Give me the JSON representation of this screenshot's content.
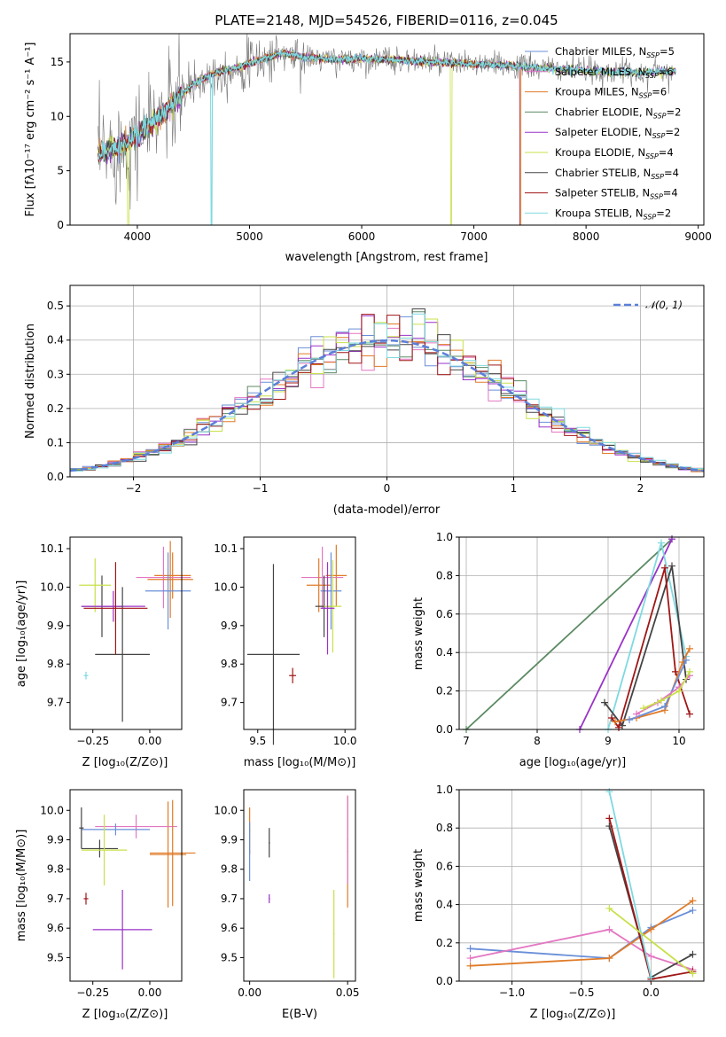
{
  "colors": {
    "chabrier_miles": "#6a8fd8",
    "salpeter_miles": "#e377c2",
    "kroupa_miles": "#e07b28",
    "chabrier_elodie": "#5b8a63",
    "salpeter_elodie": "#9a32c8",
    "kroupa_elodie": "#c8e04a",
    "chabrier_stelib": "#444444",
    "salpeter_stelib": "#a01616",
    "kroupa_stelib": "#7fd9e0",
    "normal": "#5b7fd9"
  },
  "chart_data": [
    {
      "type": "line",
      "id": "spectrum",
      "title": "PLATE=2148, MJD=54526, FIBERID=0116, z=0.045",
      "xlabel": "wavelength [Angstrom, rest frame]",
      "ylabel": "Flux [fλ10⁻¹⁷ erg cm⁻² s⁻¹ A⁻¹]",
      "xlim": [
        3400,
        9050
      ],
      "ylim": [
        0,
        17.6
      ],
      "xticks": [
        "4000",
        "5000",
        "6000",
        "7000",
        "8000",
        "9000"
      ],
      "yticks": [
        "0",
        "5",
        "10",
        "15"
      ],
      "grid": false,
      "legend": "top-right",
      "series": [
        {
          "name": "Chabrier MILES, N_SSP=5"
        },
        {
          "name": "Salpeter MILES, N_SSP=6"
        },
        {
          "name": "Kroupa MILES, N_SSP=6"
        },
        {
          "name": "Chabrier ELODIE, N_SSP=2"
        },
        {
          "name": "Salpeter ELODIE, N_SSP=2"
        },
        {
          "name": "Kroupa ELODIE, N_SSP=4"
        },
        {
          "name": "Chabrier STELIB, N_SSP=4"
        },
        {
          "name": "Salpeter STELIB, N_SSP=4"
        },
        {
          "name": "Kroupa STELIB, N_SSP=2"
        }
      ],
      "continuum": {
        "x": [
          3650,
          3900,
          4100,
          4300,
          4500,
          4700,
          4900,
          5100,
          5300,
          5500,
          5800,
          6000,
          6300,
          6600,
          7000,
          7400,
          7800,
          8200,
          8500,
          8800
        ],
        "y": [
          6.5,
          7.5,
          9.0,
          11.0,
          13.0,
          14.0,
          14.5,
          15.2,
          15.8,
          15.4,
          15.2,
          15.3,
          15.2,
          15.0,
          14.8,
          14.6,
          14.3,
          14.1,
          14.0,
          14.2
        ]
      }
    },
    {
      "type": "histogram",
      "id": "residuals",
      "xlabel": "(data-model)/error",
      "ylabel": "Normed distribution",
      "xlim": [
        -2.5,
        2.5
      ],
      "ylim": [
        0,
        0.56
      ],
      "xticks": [
        "−2",
        "−1",
        "0",
        "1",
        "2"
      ],
      "yticks": [
        "0.0",
        "0.1",
        "0.2",
        "0.3",
        "0.4",
        "0.5"
      ],
      "grid": true,
      "legend": "top-right",
      "normal_label": "𝒩(0, 1)"
    },
    {
      "type": "scatter",
      "id": "age_vs_Z",
      "xlabel": "Z [log₁₀(Z/Z⊙)]",
      "ylabel": "age  [log₁₀(age/yr)]",
      "xlim": [
        -0.35,
        0.14
      ],
      "ylim": [
        9.63,
        10.13
      ],
      "xticks": [
        "−0.25",
        "0.00"
      ],
      "yticks": [
        "9.7",
        "9.8",
        "9.9",
        "10.0",
        "10.1"
      ],
      "grid": false,
      "points": [
        {
          "x": 0.1,
          "y": 10.03,
          "xerr": 0.08,
          "yerr": 0.06
        },
        {
          "x": 0.06,
          "y": 10.025,
          "xerr": 0.12,
          "yerr": 0.08
        },
        {
          "x": 0.09,
          "y": 10.02,
          "xerr": 0.1,
          "yerr": 0.1
        },
        {
          "x": 0.08,
          "y": 9.99,
          "xerr": 0.1,
          "yerr": 0.1
        },
        {
          "x": -0.21,
          "y": 9.95,
          "xerr": 0.09,
          "yerr": 0.08
        },
        {
          "x": -0.24,
          "y": 10.005,
          "xerr": 0.07,
          "yerr": 0.07
        },
        {
          "x": -0.16,
          "y": 9.95,
          "xerr": 0.14,
          "yerr": 0.04
        },
        {
          "x": -0.12,
          "y": 9.825,
          "xerr": 0.12,
          "yerr": 0.175
        },
        {
          "x": -0.15,
          "y": 9.945,
          "xerr": 0.14,
          "yerr": 0.12
        },
        {
          "x": -0.28,
          "y": 9.77,
          "xerr": 0.01,
          "yerr": 0.01
        }
      ]
    },
    {
      "type": "scatter",
      "id": "age_vs_mass",
      "xlabel": "mass [log₁₀(M/M⊙)]",
      "ylabel": "",
      "xlim": [
        9.42,
        10.06
      ],
      "ylim": [
        9.63,
        10.13
      ],
      "xticks": [
        "9.5",
        "10.0"
      ],
      "yticks": [
        "9.7",
        "9.8",
        "9.9",
        "10.0",
        "10.1"
      ],
      "grid": false,
      "points": [
        {
          "x": 9.95,
          "y": 10.03,
          "xerr": 0.06,
          "yerr": 0.08
        },
        {
          "x": 9.87,
          "y": 10.025,
          "xerr": 0.12,
          "yerr": 0.08
        },
        {
          "x": 9.85,
          "y": 10.005,
          "xerr": 0.07,
          "yerr": 0.07
        },
        {
          "x": 9.92,
          "y": 9.99,
          "xerr": 0.06,
          "yerr": 0.1
        },
        {
          "x": 9.88,
          "y": 9.95,
          "xerr": 0.05,
          "yerr": 0.08
        },
        {
          "x": 9.93,
          "y": 9.95,
          "xerr": 0.05,
          "yerr": 0.12
        },
        {
          "x": 9.9,
          "y": 9.945,
          "xerr": 0.04,
          "yerr": 0.12
        },
        {
          "x": 9.59,
          "y": 9.825,
          "xerr": 0.15,
          "yerr": 0.235
        },
        {
          "x": 9.7,
          "y": 9.77,
          "xerr": 0.02,
          "yerr": 0.02
        }
      ]
    },
    {
      "type": "line",
      "id": "massweight_vs_age",
      "xlabel": "age  [log₁₀(age/yr)]",
      "ylabel": "mass weight",
      "xlim": [
        6.9,
        10.35
      ],
      "ylim": [
        0,
        1
      ],
      "xticks": [
        "7",
        "8",
        "9",
        "10"
      ],
      "yticks": [
        "0.0",
        "0.2",
        "0.4",
        "0.6",
        "0.8",
        "1.0"
      ],
      "grid": true,
      "series": [
        {
          "x": [
            7.0,
            9.9
          ],
          "y": [
            0.0,
            0.99
          ]
        },
        {
          "x": [
            8.6,
            9.9
          ],
          "y": [
            0.0,
            0.99
          ]
        },
        {
          "x": [
            9.0,
            9.75,
            10.1
          ],
          "y": [
            0.0,
            0.97,
            0.38
          ]
        },
        {
          "x": [
            8.95,
            9.2,
            9.9,
            10.1
          ],
          "y": [
            0.14,
            0.02,
            0.85,
            0.26
          ]
        },
        {
          "x": [
            9.05,
            9.15,
            9.8,
            9.95,
            10.15
          ],
          "y": [
            0.06,
            0.01,
            0.84,
            0.3,
            0.08
          ]
        },
        {
          "x": [
            9.1,
            9.4,
            9.8,
            10.05,
            10.15
          ],
          "y": [
            0.04,
            0.06,
            0.1,
            0.35,
            0.42
          ]
        },
        {
          "x": [
            9.3,
            9.8,
            10.1
          ],
          "y": [
            0.05,
            0.12,
            0.36
          ]
        },
        {
          "x": [
            9.4,
            9.7,
            10.0,
            10.15
          ],
          "y": [
            0.08,
            0.14,
            0.22,
            0.28
          ]
        },
        {
          "x": [
            9.5,
            9.75,
            10.0,
            10.15
          ],
          "y": [
            0.11,
            0.15,
            0.2,
            0.3
          ]
        }
      ]
    },
    {
      "type": "scatter",
      "id": "mass_vs_Z",
      "xlabel": "Z [log₁₀(Z/Z⊙)]",
      "ylabel": "mass [log₁₀(M/M⊙)]",
      "xlim": [
        -0.35,
        0.14
      ],
      "ylim": [
        9.42,
        10.07
      ],
      "xticks": [
        "−0.25",
        "0.00"
      ],
      "yticks": [
        "9.5",
        "9.6",
        "9.7",
        "9.8",
        "9.9",
        "10.0"
      ],
      "grid": false,
      "points": [
        {
          "x": 0.08,
          "y": 9.85,
          "xerr": 0.08,
          "yerr": 0.18
        },
        {
          "x": -0.06,
          "y": 9.945,
          "xerr": 0.18,
          "yerr": 0.04
        },
        {
          "x": 0.1,
          "y": 9.855,
          "xerr": 0.1,
          "yerr": 0.18
        },
        {
          "x": -0.15,
          "y": 9.935,
          "xerr": 0.15,
          "yerr": 0.02
        },
        {
          "x": -0.22,
          "y": 9.87,
          "xerr": 0.08,
          "yerr": 0.03
        },
        {
          "x": -0.2,
          "y": 9.865,
          "xerr": 0.1,
          "yerr": 0.12
        },
        {
          "x": -0.12,
          "y": 9.595,
          "xerr": 0.13,
          "yerr": 0.135
        },
        {
          "x": -0.3,
          "y": 9.94,
          "xerr": 0.01,
          "yerr": 0.07
        },
        {
          "x": -0.28,
          "y": 9.7,
          "xerr": 0.01,
          "yerr": 0.02
        }
      ]
    },
    {
      "type": "scatter",
      "id": "mass_vs_EBV",
      "xlabel": "E(B-V)",
      "ylabel": "",
      "xlim": [
        -0.003,
        0.054
      ],
      "ylim": [
        9.42,
        10.07
      ],
      "xticks": [
        "0.00",
        "0.05"
      ],
      "yticks": [
        "9.5",
        "9.6",
        "9.7",
        "9.8",
        "9.9",
        "10.0"
      ],
      "grid": false,
      "points": [
        {
          "x": 0.05,
          "y": 9.86,
          "yerr": 0.19
        },
        {
          "x": 0.05,
          "y": 9.9,
          "yerr": 0.15
        },
        {
          "x": 0.0,
          "y": 9.93,
          "yerr": 0.08
        },
        {
          "x": 0.0,
          "y": 9.86,
          "yerr": 0.1
        },
        {
          "x": 0.01,
          "y": 9.89,
          "yerr": 0.05
        },
        {
          "x": 0.043,
          "y": 9.58,
          "yerr": 0.15
        },
        {
          "x": 0.01,
          "y": 9.7,
          "yerr": 0.015
        }
      ]
    },
    {
      "type": "line",
      "id": "massweight_vs_Z",
      "xlabel": "Z [log₁₀(Z/Z⊙)]",
      "ylabel": "mass weight",
      "xlim": [
        -1.38,
        0.38
      ],
      "ylim": [
        0,
        1
      ],
      "xticks": [
        "−1.0",
        "−0.5",
        "0.0"
      ],
      "yticks": [
        "0.0",
        "0.2",
        "0.4",
        "0.6",
        "0.8",
        "1.0"
      ],
      "grid": true,
      "series": [
        {
          "x": [
            -1.3,
            -0.3,
            0.0,
            0.3
          ],
          "y": [
            0.17,
            0.12,
            0.28,
            0.37
          ]
        },
        {
          "x": [
            -1.3,
            -0.3,
            0.0,
            0.3
          ],
          "y": [
            0.12,
            0.27,
            0.13,
            0.06
          ]
        },
        {
          "x": [
            -1.3,
            -0.3,
            0.0,
            0.3
          ],
          "y": [
            0.08,
            0.12,
            0.27,
            0.42
          ]
        },
        {
          "x": [
            -0.3,
            0.0,
            0.3
          ],
          "y": [
            0.81,
            0.02,
            0.14
          ]
        },
        {
          "x": [
            -0.3,
            0.0,
            0.3
          ],
          "y": [
            0.85,
            0.01,
            0.05
          ]
        },
        {
          "x": [
            -0.3,
            0.0
          ],
          "y": [
            0.99,
            0.02
          ]
        },
        {
          "x": [
            -0.3,
            0.3
          ],
          "y": [
            0.38,
            0.04
          ]
        }
      ]
    }
  ]
}
